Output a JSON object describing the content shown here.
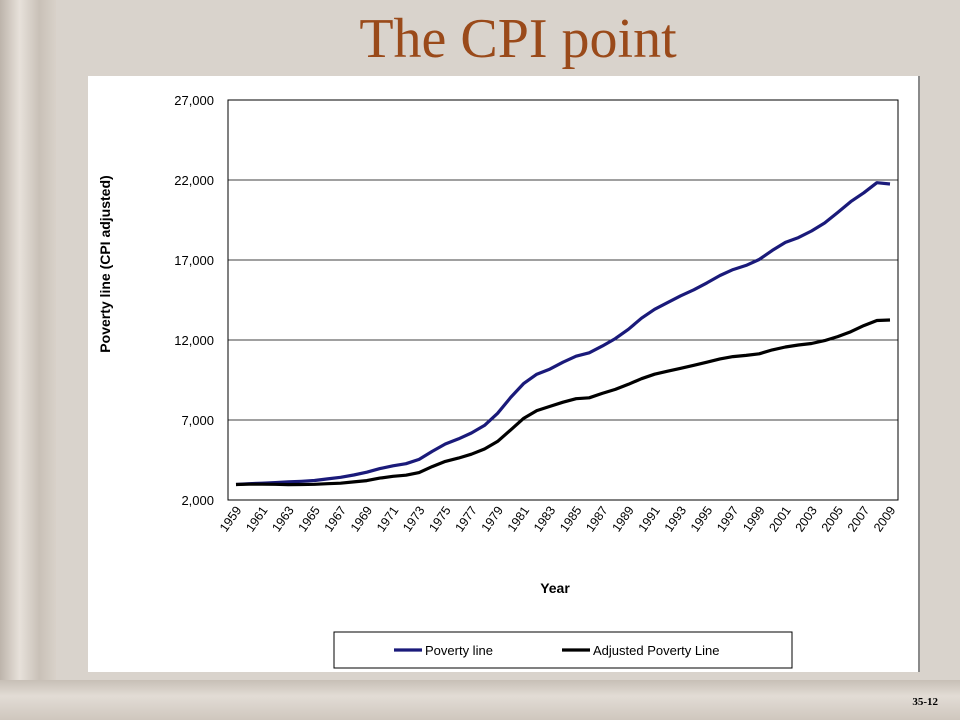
{
  "slide": {
    "title": "The CPI point",
    "slide_number": "35-12"
  },
  "chart_data": {
    "type": "line",
    "title": "",
    "xlabel": "Year",
    "ylabel": "Poverty line (CPI adjusted)",
    "ylim": [
      2000,
      27000
    ],
    "yticks": [
      2000,
      7000,
      12000,
      17000,
      22000,
      27000
    ],
    "ytick_labels": [
      "2,000",
      "7,000",
      "12,000",
      "17,000",
      "22,000",
      "27,000"
    ],
    "xtick_labels": [
      "1959",
      "1961",
      "1963",
      "1965",
      "1967",
      "1969",
      "1971",
      "1973",
      "1975",
      "1977",
      "1979",
      "1981",
      "1983",
      "1985",
      "1987",
      "1989",
      "1991",
      "1993",
      "1995",
      "1997",
      "1999",
      "2001",
      "2003",
      "2005",
      "2007",
      "2009"
    ],
    "grid": "horizontal",
    "legend_position": "bottom",
    "colors": {
      "poverty_line": "#1a1a7a",
      "adjusted": "#000000"
    },
    "x": [
      1959,
      1960,
      1961,
      1962,
      1963,
      1964,
      1965,
      1966,
      1967,
      1968,
      1969,
      1970,
      1971,
      1972,
      1973,
      1974,
      1975,
      1976,
      1977,
      1978,
      1979,
      1980,
      1981,
      1982,
      1983,
      1984,
      1985,
      1986,
      1987,
      1988,
      1989,
      1990,
      1991,
      1992,
      1993,
      1994,
      1995,
      1996,
      1997,
      1998,
      1999,
      2000,
      2001,
      2002,
      2003,
      2004,
      2005,
      2006,
      2007,
      2008,
      2009
    ],
    "series": [
      {
        "name": "Poverty line",
        "values": [
          2970,
          3020,
          3050,
          3090,
          3130,
          3170,
          3220,
          3320,
          3420,
          3560,
          3740,
          3960,
          4140,
          4270,
          4540,
          5040,
          5500,
          5820,
          6190,
          6660,
          7420,
          8410,
          9290,
          9860,
          10180,
          10610,
          10990,
          11200,
          11620,
          12090,
          12670,
          13360,
          13920,
          14340,
          14760,
          15140,
          15570,
          16030,
          16400,
          16660,
          17030,
          17600,
          18100,
          18400,
          18810,
          19310,
          19970,
          20650,
          21200,
          21830,
          21750
        ]
      },
      {
        "name": "Adjusted Poverty Line",
        "values": [
          2970,
          2990,
          2990,
          2980,
          2960,
          2970,
          2980,
          3020,
          3050,
          3130,
          3210,
          3370,
          3480,
          3550,
          3710,
          4090,
          4410,
          4620,
          4860,
          5190,
          5660,
          6380,
          7110,
          7590,
          7850,
          8110,
          8330,
          8390,
          8660,
          8910,
          9230,
          9580,
          9860,
          10050,
          10230,
          10420,
          10610,
          10820,
          10960,
          11040,
          11140,
          11380,
          11560,
          11690,
          11780,
          11960,
          12210,
          12520,
          12900,
          13220,
          13250
        ]
      }
    ]
  }
}
